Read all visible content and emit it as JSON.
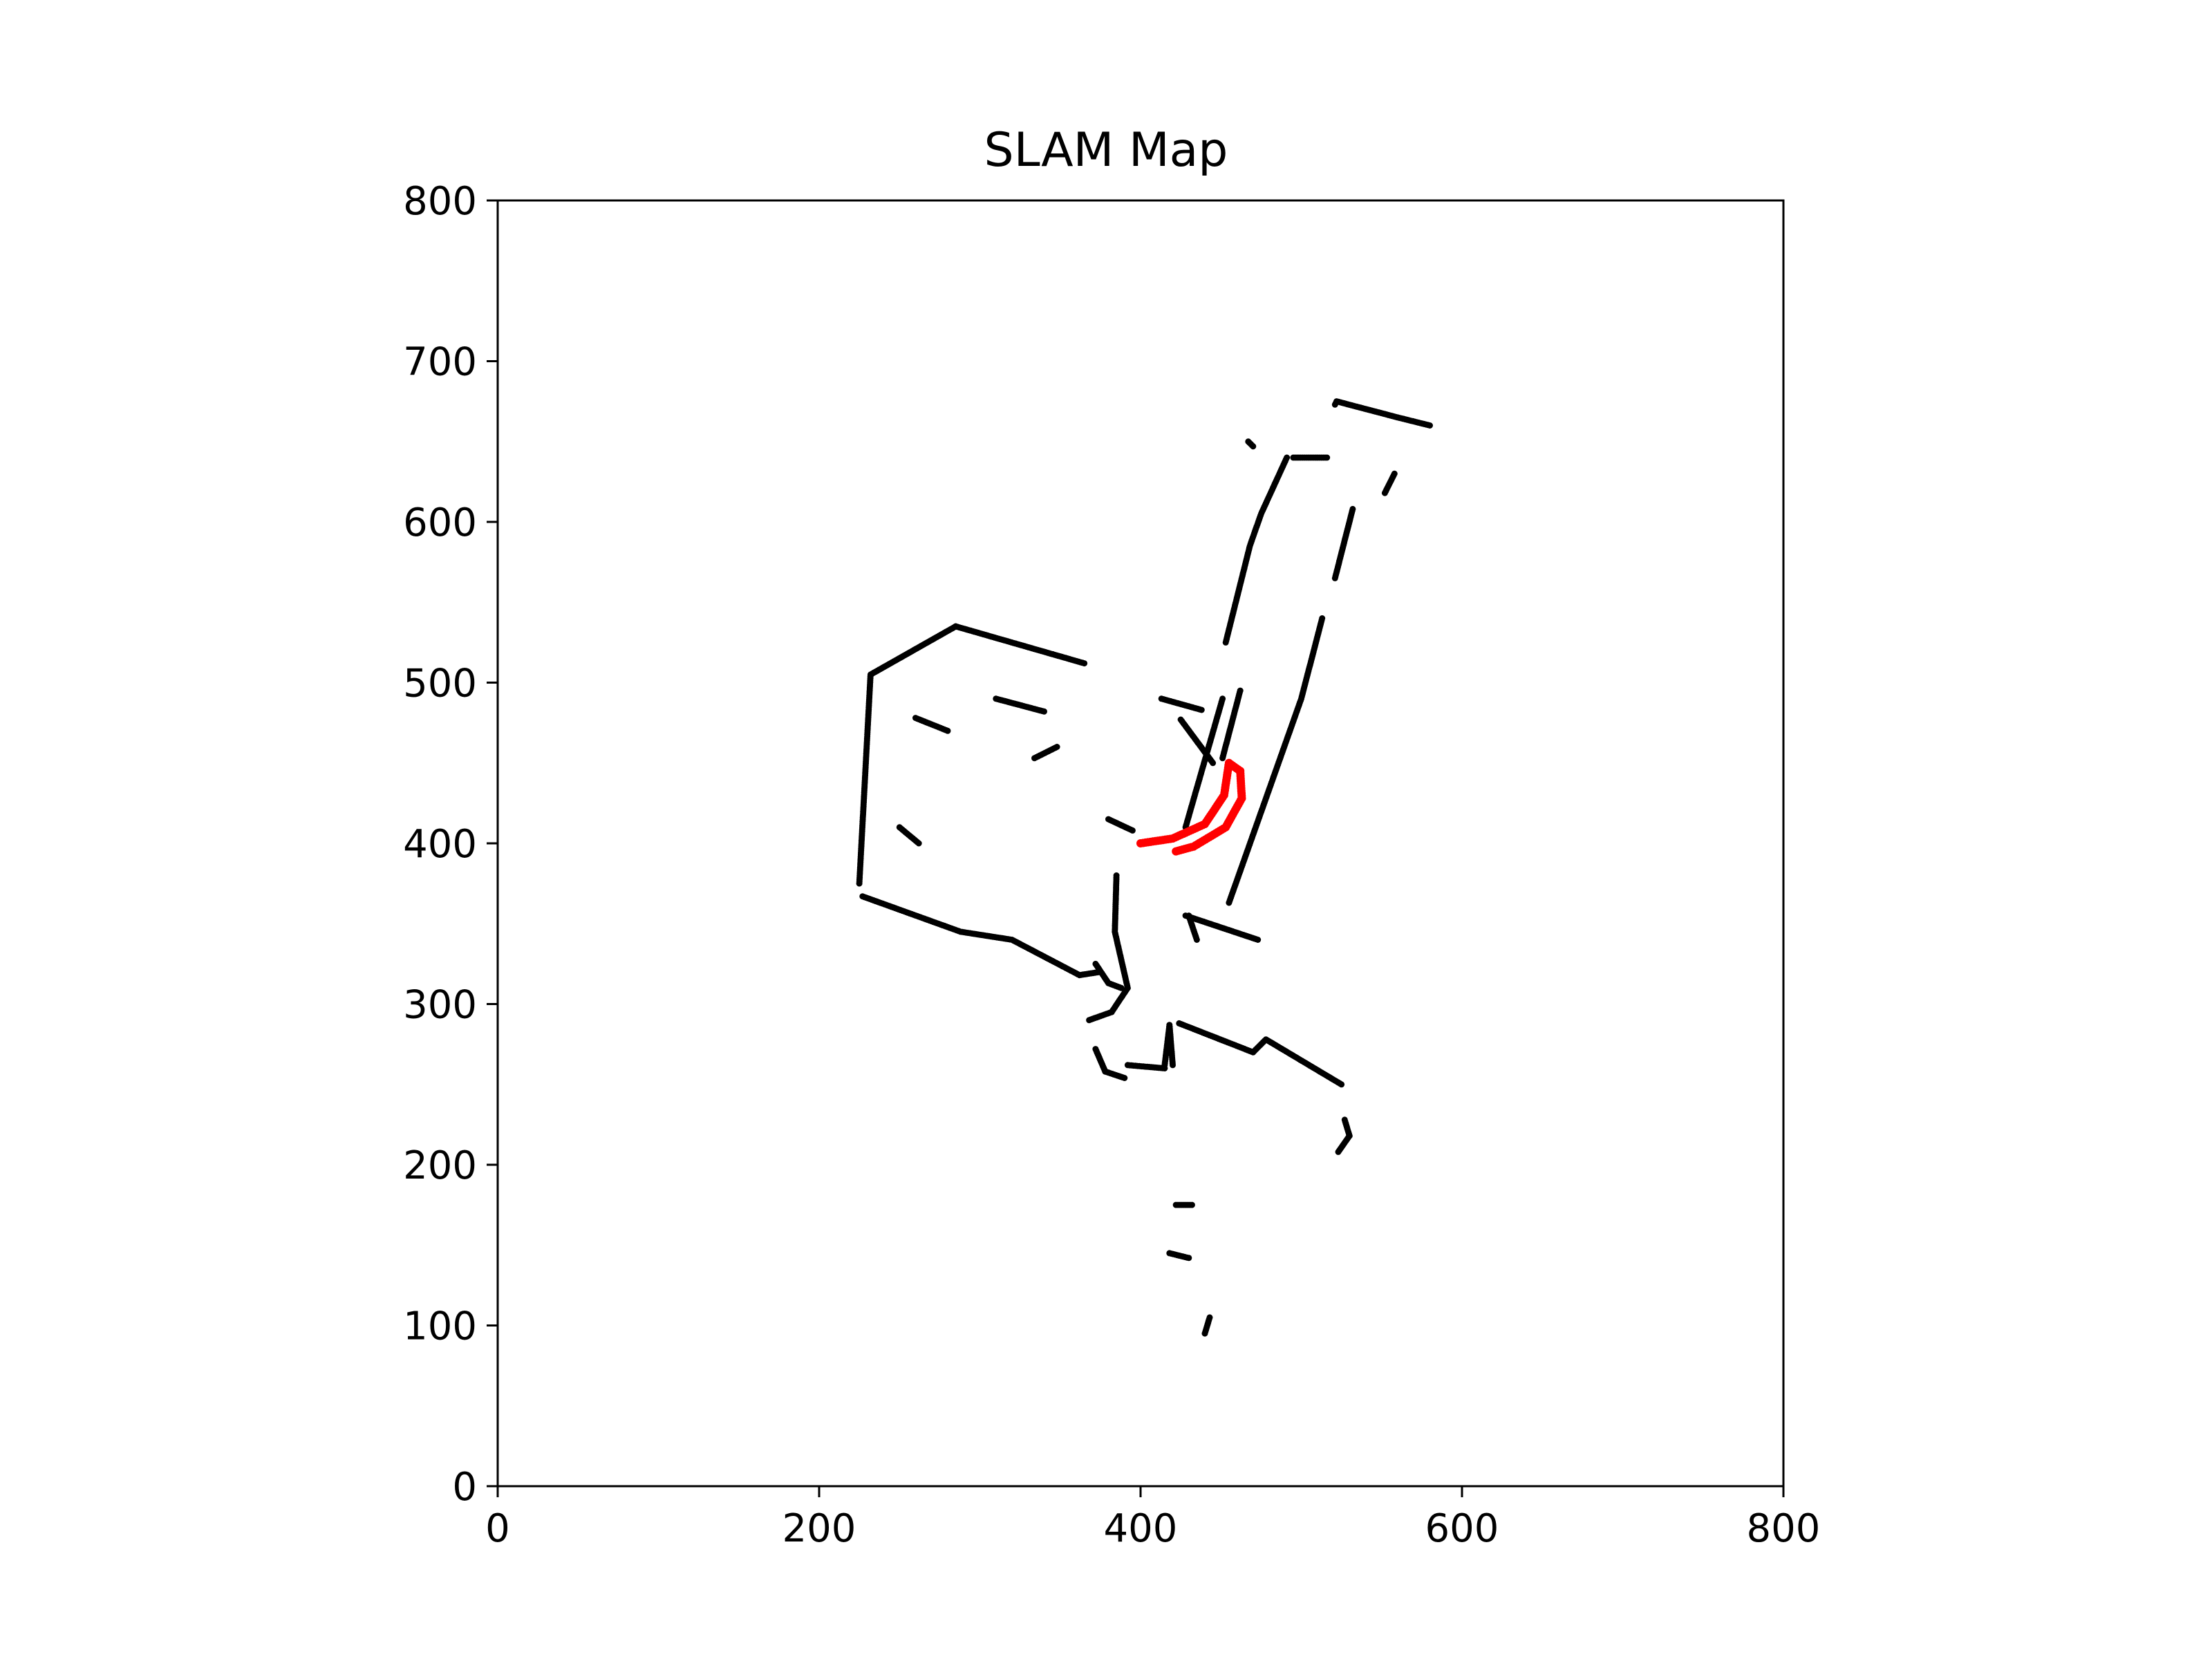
{
  "chart_data": {
    "type": "scatter",
    "title": "SLAM Map",
    "xlabel": "",
    "ylabel": "",
    "xlim": [
      0,
      800
    ],
    "ylim": [
      0,
      800
    ],
    "xticks": [
      0,
      200,
      400,
      600,
      800
    ],
    "yticks": [
      0,
      100,
      200,
      300,
      400,
      500,
      600,
      700,
      800
    ],
    "grid": false,
    "legend": "none",
    "colors": {
      "map_points": "#000000",
      "trajectory": "#ff0000",
      "axes": "#000000"
    },
    "series": [
      {
        "kind": "map_points",
        "segments": [
          [
            [
              285,
              535
            ],
            [
              232,
              505
            ],
            [
              225,
              375
            ]
          ],
          [
            [
              285,
              535
            ],
            [
              365,
              512
            ]
          ],
          [
            [
              227,
              367
            ],
            [
              288,
              345
            ],
            [
              320,
              340
            ],
            [
              362,
              318
            ],
            [
              375,
              320
            ]
          ],
          [
            [
              372,
              325
            ],
            [
              380,
              313
            ],
            [
              388,
              310
            ]
          ],
          [
            [
              385,
              380
            ],
            [
              384,
              345
            ],
            [
              392,
              310
            ],
            [
              382,
              295
            ]
          ],
          [
            [
              368,
              290
            ],
            [
              382,
              295
            ]
          ],
          [
            [
              372,
              272
            ],
            [
              378,
              258
            ],
            [
              390,
              254
            ]
          ],
          [
            [
              392,
              262
            ],
            [
              415,
              260
            ]
          ],
          [
            [
              415,
              262
            ],
            [
              418,
              287
            ],
            [
              420,
              262
            ]
          ],
          [
            [
              424,
              288
            ],
            [
              470,
              270
            ],
            [
              478,
              278
            ],
            [
              525,
              250
            ]
          ],
          [
            [
              527,
              228
            ],
            [
              530,
              218
            ],
            [
              523,
              208
            ]
          ],
          [
            [
              455,
              363
            ],
            [
              500,
              490
            ],
            [
              513,
              540
            ]
          ],
          [
            [
              521,
              565
            ],
            [
              532,
              608
            ]
          ],
          [
            [
              451,
              453
            ],
            [
              462,
              495
            ]
          ],
          [
            [
              428,
              410
            ],
            [
              451,
              490
            ]
          ],
          [
            [
              453,
              525
            ],
            [
              468,
              585
            ],
            [
              475,
              605
            ],
            [
              491,
              640
            ]
          ],
          [
            [
              495,
              640
            ],
            [
              516,
              640
            ]
          ],
          [
            [
              521,
              673
            ],
            [
              522,
              675
            ],
            [
              560,
              665
            ],
            [
              580,
              660
            ]
          ],
          [
            [
              552,
              618
            ],
            [
              558,
              630
            ]
          ],
          [
            [
              467,
              650
            ],
            [
              470,
              647
            ]
          ],
          [
            [
              430,
              355
            ],
            [
              435,
              340
            ]
          ],
          [
            [
              428,
              355
            ],
            [
              473,
              340
            ]
          ],
          [
            [
              422,
              175
            ],
            [
              432,
              175
            ]
          ],
          [
            [
              418,
              145
            ],
            [
              430,
              142
            ]
          ],
          [
            [
              440,
              95
            ],
            [
              443,
              105
            ]
          ],
          [
            [
              413,
              490
            ],
            [
              438,
              483
            ]
          ],
          [
            [
              425,
              477
            ],
            [
              445,
              450
            ]
          ],
          [
            [
              380,
              415
            ],
            [
              395,
              408
            ]
          ],
          [
            [
              334,
              453
            ],
            [
              348,
              460
            ]
          ],
          [
            [
              310,
              490
            ],
            [
              340,
              482
            ]
          ],
          [
            [
              260,
              478
            ],
            [
              280,
              470
            ]
          ],
          [
            [
              250,
              410
            ],
            [
              262,
              400
            ]
          ]
        ]
      },
      {
        "kind": "trajectory",
        "segments": [
          [
            [
              400,
              400
            ],
            [
              420,
              403
            ],
            [
              440,
              412
            ],
            [
              452,
              430
            ],
            [
              455,
              450
            ],
            [
              462,
              445
            ]
          ],
          [
            [
              462,
              445
            ],
            [
              463,
              428
            ],
            [
              453,
              410
            ],
            [
              433,
              398
            ],
            [
              422,
              395
            ]
          ]
        ]
      }
    ]
  }
}
